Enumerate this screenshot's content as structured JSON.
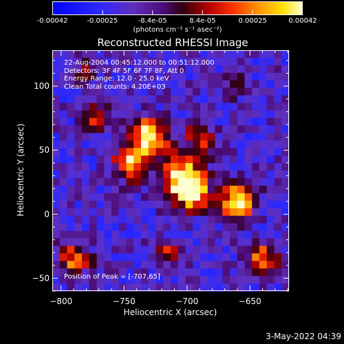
{
  "colorbar": {
    "tick_labels": [
      "-0.00042",
      "-0.00025",
      "-8.4e-05",
      "8.4e-05",
      "0.00025",
      "0.00042"
    ],
    "units": "(photons cm⁻² s⁻¹ asec⁻²)",
    "range": [
      -0.00042,
      0.00042
    ]
  },
  "info": {
    "line1": "22-Aug-2004 00:45:12.000 to 00:51:12.000",
    "line2": "Detectors: 3F 4F 5F 6F 7F 8F, Att 0",
    "line3": "Energy Range: 12.0 - 25.0 keV",
    "line4": "Clean     Total counts: 4.20E+03"
  },
  "peak_label": "Position of Peak = [-707,65]",
  "footer_date": "3-May-2022 04:39",
  "chart_data": {
    "type": "heatmap",
    "title": "Reconstructed RHESSI Image",
    "xlabel": "Heliocentric X (arcsec)",
    "ylabel": "Heliocentric Y (arcsec)",
    "xlim": [
      -807,
      -619
    ],
    "ylim": [
      -60,
      128
    ],
    "x_ticks": [
      -800,
      -750,
      -700,
      -650
    ],
    "y_ticks": [
      -50,
      0,
      50,
      100
    ],
    "x_tick_labels": [
      "−800",
      "−750",
      "−700",
      "−650"
    ],
    "y_tick_labels": [
      "−50",
      "0",
      "50",
      "100"
    ],
    "colormap": "rhessi-blue-red-yellow",
    "peak_position": [
      -707,
      65
    ],
    "grid_size": [
      32,
      32
    ],
    "sources": [
      {
        "x": -730,
        "y": 60,
        "amp": 1.0,
        "sigma": 10
      },
      {
        "x": -745,
        "y": 40,
        "amp": 0.8,
        "sigma": 9
      },
      {
        "x": -703,
        "y": 28,
        "amp": 1.0,
        "sigma": 12
      },
      {
        "x": -695,
        "y": 15,
        "amp": 0.7,
        "sigma": 8
      },
      {
        "x": -660,
        "y": 10,
        "amp": 0.9,
        "sigma": 10
      },
      {
        "x": -640,
        "y": -35,
        "amp": 0.7,
        "sigma": 8
      },
      {
        "x": -770,
        "y": 75,
        "amp": 0.6,
        "sigma": 7
      },
      {
        "x": -690,
        "y": 60,
        "amp": 0.5,
        "sigma": 8
      },
      {
        "x": -790,
        "y": -35,
        "amp": 0.6,
        "sigma": 9
      },
      {
        "x": -715,
        "y": -30,
        "amp": 0.4,
        "sigma": 8
      },
      {
        "x": -780,
        "y": 110,
        "amp": 0.35,
        "sigma": 6
      },
      {
        "x": -660,
        "y": 100,
        "amp": 0.35,
        "sigma": 6
      }
    ]
  }
}
